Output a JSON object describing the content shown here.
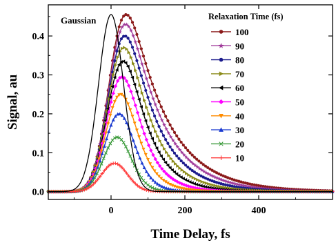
{
  "chart_data": {
    "type": "line",
    "xlabel": "Time Delay, fs",
    "ylabel": "Signal, au",
    "xlim": [
      -170,
      600
    ],
    "ylim": [
      -0.02,
      0.48
    ],
    "x_ticks": [
      0,
      200,
      400
    ],
    "y_ticks": [
      0.0,
      0.1,
      0.2,
      0.3,
      0.4
    ],
    "y_tick_labels": [
      "0.0",
      "0.1",
      "0.2",
      "0.3",
      "0.4"
    ],
    "grid": false,
    "legend": {
      "title": "Relaxation Time (fs)",
      "placement": "top-right"
    },
    "annotation": "Gaussian",
    "gaussian": {
      "peak": 0.455,
      "center_fs": 0,
      "fwhm_fs": 80,
      "color": "#000000"
    },
    "series": [
      {
        "name": "100",
        "relaxation_fs": 100,
        "peak": 0.455,
        "peak_delay_fs": 53,
        "color": "#8B1A1A",
        "marker": "circle"
      },
      {
        "name": "90",
        "relaxation_fs": 90,
        "peak": 0.43,
        "peak_delay_fs": 50,
        "color": "#A03A9A",
        "marker": "star"
      },
      {
        "name": "80",
        "relaxation_fs": 80,
        "peak": 0.4,
        "peak_delay_fs": 47,
        "color": "#1A1A8C",
        "marker": "circle"
      },
      {
        "name": "70",
        "relaxation_fs": 70,
        "peak": 0.37,
        "peak_delay_fs": 44,
        "color": "#8C8C1A",
        "marker": "triangle-right"
      },
      {
        "name": "60",
        "relaxation_fs": 60,
        "peak": 0.335,
        "peak_delay_fs": 40,
        "color": "#000000",
        "marker": "triangle-left"
      },
      {
        "name": "50",
        "relaxation_fs": 50,
        "peak": 0.295,
        "peak_delay_fs": 37,
        "color": "#FF00FF",
        "marker": "diamond"
      },
      {
        "name": "40",
        "relaxation_fs": 40,
        "peak": 0.25,
        "peak_delay_fs": 33,
        "color": "#FF8C00",
        "marker": "triangle-down"
      },
      {
        "name": "30",
        "relaxation_fs": 30,
        "peak": 0.2,
        "peak_delay_fs": 29,
        "color": "#1A3AD0",
        "marker": "triangle-up"
      },
      {
        "name": "20",
        "relaxation_fs": 20,
        "peak": 0.14,
        "peak_delay_fs": 24,
        "color": "#3A9A3A",
        "marker": "x"
      },
      {
        "name": "10",
        "relaxation_fs": 10,
        "peak": 0.073,
        "peak_delay_fs": 18,
        "color": "#FF3A3A",
        "marker": "plus"
      }
    ]
  }
}
